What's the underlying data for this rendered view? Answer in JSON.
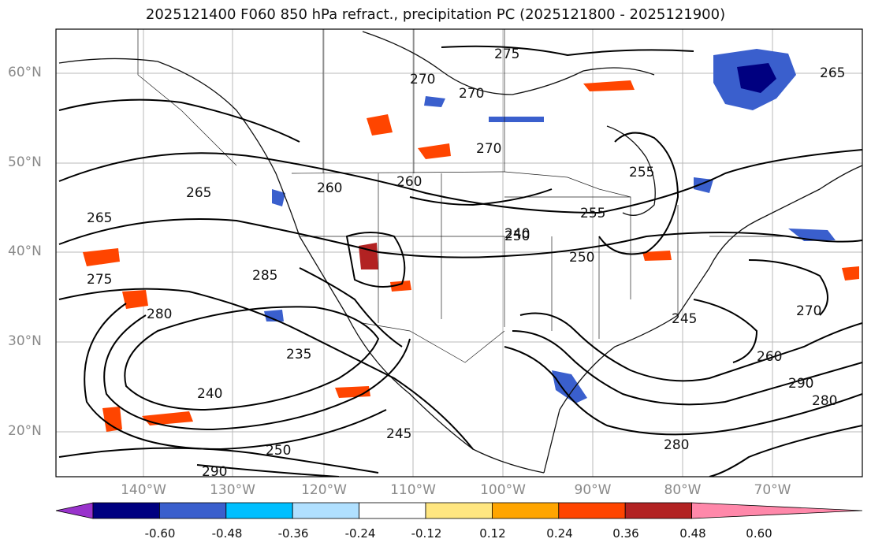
{
  "title": "2025121400 F060 850 hPa refract., precipitation PC (2025121800 - 2025121900)",
  "lat_labels": [
    "60°N",
    "50°N",
    "40°N",
    "30°N",
    "20°N"
  ],
  "lon_labels": [
    "140°W",
    "130°W",
    "120°W",
    "110°W",
    "100°W",
    "90°W",
    "80°W",
    "70°W"
  ],
  "colorbar": {
    "ticks": [
      "-0.60",
      "-0.48",
      "-0.36",
      "-0.24",
      "-0.12",
      "0.12",
      "0.24",
      "0.36",
      "0.48",
      "0.60"
    ],
    "colors": [
      "#9933cc",
      "#000080",
      "#3a5fcd",
      "#00bfff",
      "#b0e0ff",
      "#ffffff",
      "#ffe680",
      "#ffa500",
      "#ff4500",
      "#b22222",
      "#ff88aa"
    ]
  },
  "contour_labels": [
    "275",
    "270",
    "270",
    "270",
    "265",
    "265",
    "265",
    "260",
    "260",
    "255",
    "255",
    "250",
    "250",
    "250",
    "245",
    "245",
    "240",
    "240",
    "235",
    "280",
    "280",
    "280",
    "285",
    "290",
    "290",
    "275",
    "260",
    "270"
  ]
}
